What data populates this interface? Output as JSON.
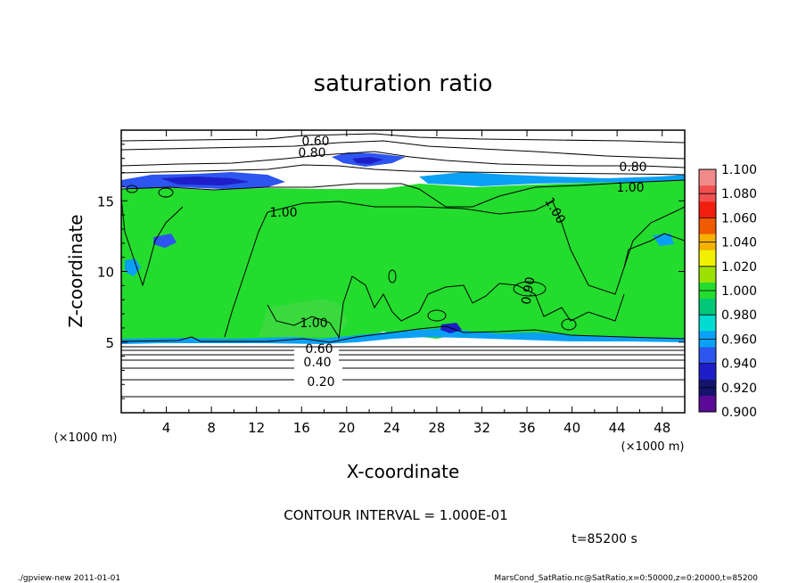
{
  "chart_data": {
    "type": "heatmap",
    "title": "saturation ratio",
    "xlabel": "X-coordinate",
    "ylabel": "Z-coordinate",
    "x_unit": "(×1000 m)",
    "y_unit": "(×1000 m)",
    "xlim": [
      0,
      50
    ],
    "ylim": [
      0,
      20
    ],
    "x_ticks": [
      4,
      8,
      12,
      16,
      20,
      24,
      28,
      32,
      36,
      40,
      44,
      48
    ],
    "y_ticks": [
      5,
      10,
      15
    ],
    "colorbar": {
      "levels": [
        "1.100",
        "1.080",
        "1.060",
        "1.040",
        "1.020",
        "1.000",
        "0.980",
        "0.960",
        "0.940",
        "0.920",
        "0.900"
      ],
      "colors": [
        "#f08a8a",
        "#f25050",
        "#f21e10",
        "#f05a00",
        "#f5b000",
        "#f0f000",
        "#9ee000",
        "#23dc2d",
        "#00c878",
        "#00dcd2",
        "#0aa0f5",
        "#2d55f0",
        "#1e1ec8",
        "#14146e",
        "#5a0a96"
      ]
    },
    "contour_labels": [
      "0.60",
      "0.80",
      "0.80",
      "1.00",
      "1.00",
      "1.00",
      "1.00",
      "1.00",
      "0.90",
      "0.60",
      "0.40",
      "0.20"
    ],
    "contour_interval_text": "CONTOUR INTERVAL = 1.000E-01",
    "time_text": "t=85200 s",
    "field": {
      "saturated_layer_z": [
        5,
        16.5
      ],
      "saturated_value": 1.0,
      "dry_layer_z": [
        0,
        5
      ],
      "moist_upper_band_z": [
        16.5,
        17.5
      ],
      "moist_upper_band_value": 0.94
    }
  },
  "footer": {
    "left": "./gpview-new   2011-01-01",
    "right": "MarsCond_SatRatio.nc@SatRatio,x=0:50000,z=0:20000,t=85200"
  }
}
